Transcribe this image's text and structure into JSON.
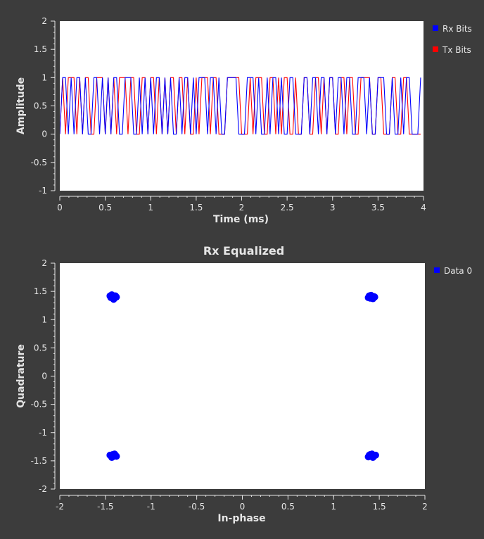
{
  "colors": {
    "background": "#3c3c3c",
    "plot_bg": "#ffffff",
    "axis": "#e6e6e6",
    "rx": "#0000ff",
    "tx": "#ff0000"
  },
  "chart_data": [
    {
      "type": "line",
      "title": "",
      "xlabel": "Time (ms)",
      "ylabel": "Amplitude",
      "xlim": [
        0,
        4
      ],
      "ylim": [
        -1,
        2
      ],
      "xticks": [
        0,
        0.5,
        1,
        1.5,
        2,
        2.5,
        3,
        3.5,
        4
      ],
      "xtick_labels": [
        "0",
        "0.5",
        "1",
        "1.5",
        "2",
        "2.5",
        "3",
        "3.5",
        "4"
      ],
      "yticks": [
        -1,
        -0.5,
        0,
        0.5,
        1,
        1.5,
        2
      ],
      "ytick_labels": [
        "-1",
        "-0.5",
        "0",
        "0.5",
        "1",
        "1.5",
        "2"
      ],
      "legend_position": "right-top",
      "grid": false,
      "bit_period_ms": 0.03125,
      "series": [
        {
          "name": "Rx Bits",
          "color": "#0000ff",
          "bits": [
            0,
            1,
            1,
            0,
            1,
            0,
            1,
            1,
            0,
            1,
            0,
            0,
            1,
            1,
            0,
            1,
            0,
            1,
            0,
            1,
            1,
            0,
            0,
            1,
            1,
            1,
            0,
            0,
            1,
            0,
            1,
            0,
            1,
            0,
            1,
            1,
            0,
            1,
            0,
            1,
            0,
            0,
            1,
            0,
            1,
            1,
            0,
            1,
            0,
            1,
            1,
            1,
            0,
            1,
            1,
            0,
            1,
            0,
            0,
            1,
            1,
            1,
            1,
            0,
            0,
            0,
            1,
            1,
            1,
            0,
            1,
            0,
            0,
            1,
            0,
            1,
            1,
            0,
            1,
            0,
            0,
            1,
            1,
            0,
            0,
            0,
            1,
            1,
            0,
            1,
            1,
            0,
            1,
            1,
            0,
            1,
            1,
            0,
            1,
            1,
            0,
            1,
            1,
            0,
            0,
            1,
            1,
            1,
            0,
            1,
            0,
            0,
            1,
            1,
            1,
            0,
            0,
            1,
            0,
            0,
            1,
            0,
            1,
            1,
            0,
            0,
            0,
            1
          ]
        },
        {
          "name": "Tx Bits",
          "color": "#ff0000",
          "bits": [
            0,
            1,
            0,
            1,
            1,
            1,
            0,
            1,
            0,
            1,
            1,
            0,
            0,
            1,
            1,
            1,
            0,
            1,
            0,
            1,
            0,
            1,
            1,
            1,
            0,
            1,
            1,
            0,
            0,
            1,
            1,
            0,
            1,
            1,
            0,
            1,
            0,
            1,
            0,
            1,
            1,
            0,
            1,
            1,
            0,
            1,
            0,
            0,
            1,
            0,
            1,
            1,
            1,
            0,
            1,
            1,
            0,
            0,
            0,
            1,
            1,
            1,
            1,
            1,
            0,
            0,
            0,
            1,
            0,
            1,
            1,
            1,
            0,
            0,
            1,
            1,
            0,
            1,
            0,
            1,
            1,
            0,
            0,
            1,
            0,
            0,
            1,
            1,
            0,
            0,
            1,
            1,
            0,
            1,
            0,
            1,
            1,
            0,
            0,
            1,
            1,
            0,
            1,
            1,
            0,
            0,
            1,
            1,
            1,
            1,
            0,
            0,
            1,
            1,
            0,
            0,
            0,
            1,
            1,
            0,
            0,
            1,
            1,
            0,
            0,
            0,
            0,
            0
          ]
        }
      ]
    },
    {
      "type": "scatter",
      "title": "Rx Equalized",
      "xlabel": "In-phase",
      "ylabel": "Quadrature",
      "xlim": [
        -2,
        2
      ],
      "ylim": [
        -2,
        2
      ],
      "xticks": [
        -2,
        -1.5,
        -1,
        -0.5,
        0,
        0.5,
        1,
        1.5,
        2
      ],
      "xtick_labels": [
        "-2",
        "-1.5",
        "-1",
        "-0.5",
        "0",
        "0.5",
        "1",
        "1.5",
        "2"
      ],
      "yticks": [
        -2,
        -1.5,
        -1,
        -0.5,
        0,
        0.5,
        1,
        1.5,
        2
      ],
      "ytick_labels": [
        "-2",
        "-1.5",
        "-1",
        "-0.5",
        "0",
        "0.5",
        "1",
        "1.5",
        "2"
      ],
      "legend_position": "right-top",
      "grid": false,
      "series": [
        {
          "name": "Data 0",
          "color": "#0000ff",
          "points": [
            [
              -1.42,
              1.41
            ],
            [
              -1.4,
              1.38
            ],
            [
              -1.44,
              1.39
            ],
            [
              -1.39,
              1.42
            ],
            [
              -1.41,
              1.36
            ],
            [
              -1.45,
              1.42
            ],
            [
              -1.38,
              1.4
            ],
            [
              -1.43,
              1.44
            ],
            [
              1.42,
              1.4
            ],
            [
              1.4,
              1.38
            ],
            [
              1.44,
              1.41
            ],
            [
              1.39,
              1.42
            ],
            [
              1.43,
              1.37
            ],
            [
              1.45,
              1.4
            ],
            [
              1.38,
              1.39
            ],
            [
              1.41,
              1.43
            ],
            [
              -1.41,
              -1.42
            ],
            [
              -1.39,
              -1.4
            ],
            [
              -1.44,
              -1.41
            ],
            [
              -1.4,
              -1.38
            ],
            [
              -1.43,
              -1.44
            ],
            [
              -1.45,
              -1.4
            ],
            [
              -1.38,
              -1.42
            ],
            [
              -1.42,
              -1.39
            ],
            [
              1.41,
              -1.42
            ],
            [
              1.39,
              -1.4
            ],
            [
              1.44,
              -1.41
            ],
            [
              1.42,
              -1.38
            ],
            [
              1.43,
              -1.44
            ],
            [
              1.46,
              -1.4
            ],
            [
              1.38,
              -1.43
            ],
            [
              1.4,
              -1.39
            ]
          ]
        }
      ]
    }
  ]
}
